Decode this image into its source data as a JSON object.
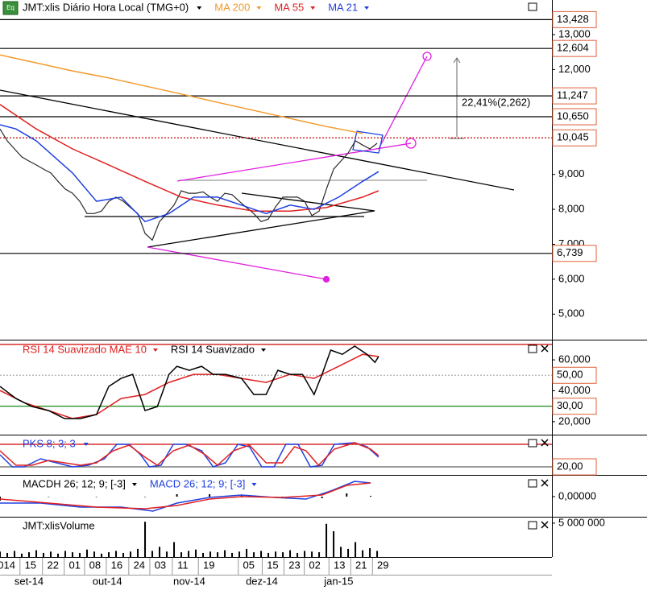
{
  "chart_data": [
    {
      "type": "line",
      "icon": "Eq",
      "title": "JMT:xlis Diário Hora Local (TMG+0)",
      "xlim": [
        0,
        76.1
      ],
      "ylim": [
        4.27,
        13.99
      ],
      "yticks": [
        {
          "value": 13,
          "label": "13,000"
        },
        {
          "value": 12,
          "label": "12,000"
        },
        {
          "value": 9,
          "label": "9,000"
        },
        {
          "value": 8,
          "label": "8,000"
        },
        {
          "value": 7,
          "label": "7,000"
        },
        {
          "value": 6,
          "label": "6,000"
        },
        {
          "value": 5,
          "label": "5,000"
        }
      ],
      "levels": [
        {
          "value": 13.428,
          "label": "13,428",
          "color": "#000000"
        },
        {
          "value": 12.604,
          "label": "12,604",
          "color": "#000000"
        },
        {
          "value": 11.247,
          "label": "11,247",
          "color": "#000000"
        },
        {
          "value": 10.65,
          "label": "10,650",
          "color": "#000000"
        },
        {
          "value": 10.045,
          "label": "10,045",
          "color": "#c00000",
          "style": "dotted"
        },
        {
          "value": 6.739,
          "label": "6,739",
          "color": "#000000"
        }
      ],
      "annotation": "22,41%(2,262)",
      "series": [
        {
          "color": "#2a2a2a",
          "x": [
            0,
            1,
            2,
            3,
            4,
            5,
            6,
            7,
            8,
            9,
            10,
            11,
            12,
            13,
            14,
            15,
            16,
            17,
            18,
            19,
            20,
            21,
            22,
            23,
            24,
            25,
            26,
            27,
            28,
            29,
            30,
            31,
            32,
            33,
            34,
            35,
            36,
            37,
            38,
            39,
            40,
            41,
            42,
            43,
            44,
            45,
            46,
            47,
            48,
            49,
            50,
            51,
            52
          ],
          "values": [
            10.3,
            9.96,
            9.73,
            9.5,
            9.38,
            9.27,
            9.15,
            9.04,
            8.8,
            8.58,
            8.46,
            8.23,
            7.88,
            7.88,
            7.95,
            8.23,
            8.35,
            8.23,
            8.05,
            7.88,
            7.31,
            7.12,
            7.65,
            7.88,
            8.12,
            8.53,
            8.46,
            8.46,
            8.5,
            8.35,
            8.23,
            8.46,
            8.42,
            8.23,
            8.05,
            7.88,
            7.65,
            7.72,
            8.07,
            8.35,
            8.35,
            8.35,
            8.23,
            7.82,
            7.95,
            8.58,
            9.15,
            9.38,
            9.61,
            9.96,
            9.84,
            9.73,
            9.89
          ]
        },
        {
          "name": "MA 200",
          "color": "#f39a2b",
          "x": [
            0,
            5,
            10,
            15,
            20,
            25,
            30,
            35,
            40,
            45,
            50
          ],
          "values": [
            12.42,
            12.19,
            11.96,
            11.76,
            11.53,
            11.3,
            11.06,
            10.83,
            10.6,
            10.37,
            10.17
          ]
        },
        {
          "name": "MA 55",
          "color": "#e02020",
          "x": [
            0,
            5,
            10,
            15,
            20,
            25,
            30,
            35,
            40,
            45,
            50,
            52.2
          ],
          "values": [
            11.0,
            10.3,
            9.73,
            9.27,
            8.8,
            8.35,
            8.12,
            7.95,
            7.95,
            8.05,
            8.35,
            8.53
          ]
        },
        {
          "name": "MA 21",
          "color": "#2040e0",
          "x": [
            0,
            2.2,
            5,
            10,
            13.3,
            16.7,
            20,
            23.3,
            26.7,
            30,
            33.3,
            36.7,
            40,
            43.3,
            46.7,
            50,
            52.2
          ],
          "values": [
            10.42,
            10.3,
            9.96,
            9.04,
            8.23,
            8.35,
            7.65,
            7.88,
            8.35,
            8.35,
            8.12,
            7.88,
            8.12,
            8.0,
            8.35,
            8.8,
            9.08
          ]
        }
      ]
    },
    {
      "type": "line",
      "xlim": [
        0,
        76.1
      ],
      "ylim": [
        11.6,
        71.5
      ],
      "yticks": [
        {
          "value": 60,
          "label": "60,000"
        },
        {
          "value": 40,
          "label": "40,000"
        },
        {
          "value": 20,
          "label": "20,000"
        }
      ],
      "levels": [
        {
          "value": 70,
          "color": "#d00000"
        },
        {
          "value": 50,
          "label": "50,00",
          "color": "#b0b0b0",
          "style": "dotted"
        },
        {
          "value": 30,
          "label": "30,00",
          "color": "#007a00"
        }
      ],
      "series": [
        {
          "name": "RSI 14 Suavizado MAE 10",
          "color": "#e02020",
          "x": [
            0,
            3.3,
            6.7,
            10,
            13.3,
            16.7,
            20,
            23.3,
            26.7,
            30,
            33.3,
            36.7,
            40,
            43.3,
            46.7,
            50,
            52.2
          ],
          "values": [
            40.2,
            32.4,
            27.2,
            22,
            24.6,
            35,
            37.6,
            45.4,
            50.6,
            50.6,
            48,
            45.4,
            50.6,
            48,
            55.8,
            63.6,
            62.1
          ]
        },
        {
          "name": "RSI 14 Suavizado",
          "color": "#000000",
          "x": [
            0,
            2.2,
            4.4,
            6.7,
            8.9,
            11.1,
            13.3,
            15,
            16.7,
            18.3,
            20,
            21.7,
            23.3,
            24.4,
            26.1,
            27.8,
            29.4,
            31.1,
            33.3,
            35,
            36.7,
            38.3,
            40,
            41.7,
            43.3,
            44.4,
            45.6,
            47.2,
            48.9,
            50.6,
            51.7,
            52.2
          ],
          "values": [
            42.8,
            35,
            29.8,
            27.2,
            22,
            22,
            24.6,
            42.8,
            48,
            50.6,
            27.2,
            29.8,
            50.6,
            55.8,
            53.2,
            55.8,
            50.6,
            50.6,
            48,
            37.6,
            37.6,
            53.2,
            50.6,
            50.6,
            37.6,
            50.6,
            66.3,
            63.6,
            68.9,
            63.6,
            58.4,
            62.1
          ]
        }
      ]
    },
    {
      "type": "line",
      "title": "PKS 8; 3; 3",
      "title_color": "#2040e0",
      "xlim": [
        0,
        76.1
      ],
      "ylim": [
        -1.4,
        101.4
      ],
      "levels": [
        {
          "value": 80,
          "color": "#d00000"
        },
        {
          "value": 20,
          "label": "20,00",
          "color": "#606060"
        }
      ],
      "series": [
        {
          "color": "#2040e0",
          "x": [
            0,
            1.7,
            3.3,
            5.6,
            7.8,
            10,
            12.2,
            14.4,
            16.1,
            17.8,
            19.4,
            20.6,
            22.2,
            23.9,
            25.6,
            27.8,
            29.4,
            31.1,
            32.8,
            34.4,
            36.1,
            37.8,
            39.4,
            41.1,
            42.8,
            44.4,
            46.1,
            48.9,
            50.6,
            52.2
          ],
          "values": [
            52.2,
            20,
            20,
            41.5,
            30.7,
            20,
            24.3,
            41.5,
            80,
            80,
            52.2,
            20,
            24.3,
            80,
            80,
            62.9,
            20,
            30.7,
            80,
            73.6,
            20,
            20,
            80,
            80,
            20,
            24.3,
            80,
            84.3,
            73.6,
            45.7
          ]
        },
        {
          "color": "#e02020",
          "x": [
            0,
            2.2,
            4.4,
            6.7,
            8.9,
            11.1,
            13.3,
            15.6,
            17.8,
            20,
            21.7,
            23.9,
            26.1,
            28.3,
            30,
            32.2,
            34.4,
            36.7,
            38.9,
            40.6,
            42.2,
            43.9,
            46.1,
            48.9,
            51.1,
            52.2
          ],
          "values": [
            62.9,
            24.3,
            24.3,
            37.2,
            30.7,
            24.3,
            30.7,
            62.9,
            77.9,
            45.7,
            24.3,
            62.9,
            77.9,
            52.2,
            24.3,
            62.9,
            77.9,
            30.7,
            30.7,
            73.6,
            62.9,
            24.3,
            67.1,
            84.3,
            67.1,
            50
          ]
        }
      ]
    },
    {
      "type": "line",
      "xlim": [
        0,
        76.1
      ],
      "ylim": [
        -0.5,
        0.5
      ],
      "yticks": [
        {
          "value": 0,
          "label": "0,00000"
        }
      ],
      "series": [
        {
          "name": "MACDH 26; 12; 9; [-3]",
          "color": "#000000",
          "bars": true,
          "x": [
            0,
            6.7,
            13.3,
            20,
            24.4,
            28.9,
            33.3,
            38.9,
            44.4,
            47.8,
            51.1
          ],
          "values": [
            -0.1,
            0,
            0,
            0,
            0.06,
            0.06,
            0.04,
            0,
            -0.04,
            0.08,
            0.02
          ]
        },
        {
          "name": "MACD 26; 12; 9; [-3]",
          "color": "#2040e0",
          "x": [
            0,
            5.6,
            11.1,
            16.7,
            21.1,
            24.4,
            28.9,
            33.3,
            37.8,
            42.2,
            45.6,
            48.9,
            51.1
          ],
          "values": [
            -0.16,
            -0.16,
            -0.26,
            -0.26,
            -0.36,
            -0.16,
            -0.02,
            0.04,
            -0.02,
            -0.06,
            0.14,
            0.38,
            0.34
          ]
        },
        {
          "color": "#e02020",
          "x": [
            0,
            6.7,
            13.3,
            20,
            24.4,
            28.9,
            33.3,
            38.9,
            44.4,
            47.8,
            51.1
          ],
          "values": [
            -0.06,
            -0.16,
            -0.26,
            -0.3,
            -0.22,
            -0.06,
            0,
            -0.02,
            0.04,
            0.28,
            0.34
          ]
        }
      ]
    },
    {
      "type": "bar",
      "title": "JMT:xlisVolume",
      "color": "#000000",
      "xlim": [
        0,
        76.1
      ],
      "ylim": [
        0,
        5700000
      ],
      "yticks": [
        {
          "value": 5000000,
          "label": "5 000 000"
        }
      ],
      "x": [
        0,
        1,
        2,
        3,
        4,
        5,
        6,
        7,
        8,
        9,
        10,
        11,
        12,
        13,
        14,
        15,
        16,
        17,
        18,
        19,
        20,
        21,
        22,
        23,
        24,
        25,
        26,
        27,
        28,
        29,
        30,
        31,
        32,
        33,
        34,
        35,
        36,
        37,
        38,
        39,
        40,
        41,
        42,
        43,
        44,
        45,
        46,
        47,
        48,
        49,
        50,
        51,
        52
      ],
      "values": [
        800000,
        600000,
        900000,
        500000,
        700000,
        1000000,
        600000,
        800000,
        500000,
        900000,
        700000,
        600000,
        1100000,
        800000,
        500000,
        700000,
        900000,
        600000,
        800000,
        1200000,
        5200000,
        900000,
        1500000,
        800000,
        2200000,
        700000,
        900000,
        1100000,
        600000,
        800000,
        700000,
        1000000,
        600000,
        800000,
        1200000,
        700000,
        900000,
        600000,
        800000,
        700000,
        1000000,
        600000,
        900000,
        800000,
        700000,
        4900000,
        3800000,
        1500000,
        1200000,
        2200000,
        1000000,
        1300000,
        900000
      ],
      "xticks": [
        {
          "value": 0.9,
          "label": "014"
        },
        {
          "value": 4.2,
          "label": "15"
        },
        {
          "value": 7.3,
          "label": "22"
        },
        {
          "value": 10.3,
          "label": "01"
        },
        {
          "value": 13.1,
          "label": "08"
        },
        {
          "value": 16.1,
          "label": "16"
        },
        {
          "value": 19.2,
          "label": "24"
        },
        {
          "value": 22.1,
          "label": "03"
        },
        {
          "value": 25.2,
          "label": "11"
        },
        {
          "value": 28.8,
          "label": "19"
        },
        {
          "value": 34.3,
          "label": "05"
        },
        {
          "value": 37.6,
          "label": "15"
        },
        {
          "value": 40.6,
          "label": "23"
        },
        {
          "value": 43.4,
          "label": "02"
        },
        {
          "value": 46.8,
          "label": "13"
        },
        {
          "value": 49.8,
          "label": "21"
        },
        {
          "value": 52.8,
          "label": "29"
        }
      ],
      "month_labels": [
        {
          "value": 4,
          "label": "set-14"
        },
        {
          "value": 14.8,
          "label": "out-14"
        },
        {
          "value": 26.1,
          "label": "nov-14"
        },
        {
          "value": 36.1,
          "label": "dez-14"
        },
        {
          "value": 46.7,
          "label": "jan-15"
        }
      ]
    }
  ]
}
